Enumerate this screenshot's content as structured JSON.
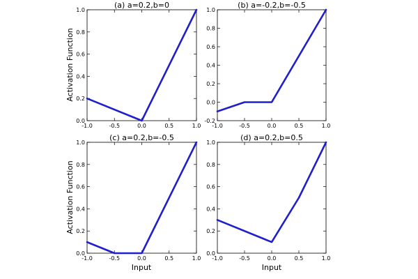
{
  "figure": {
    "ylabel": "Activation Function",
    "xlabel": "Input"
  },
  "chart_data": [
    {
      "type": "line",
      "title": "(a) a=0.2,b=0",
      "xlim": [
        -1.0,
        1.0
      ],
      "ylim": [
        0.0,
        1.0
      ],
      "xticks": [
        "-1.0",
        "-0.5",
        "0.0",
        "0.5",
        "1.0"
      ],
      "yticks": [
        "0.0",
        "0.2",
        "0.4",
        "0.6",
        "0.8",
        "1.0"
      ],
      "series": [
        {
          "color": "#1f1fcc",
          "x": [
            -1.0,
            -0.02,
            0.0,
            1.0
          ],
          "y": [
            0.2,
            0.004,
            0.0,
            1.0
          ]
        }
      ]
    },
    {
      "type": "line",
      "title": "(b) a=-0.2,b=-0.5",
      "xlim": [
        -1.0,
        1.0
      ],
      "ylim": [
        -0.2,
        1.0
      ],
      "xticks": [
        "-1.0",
        "-0.5",
        "0.0",
        "0.5",
        "1.0"
      ],
      "yticks": [
        "-0.2",
        "0.0",
        "0.2",
        "0.4",
        "0.6",
        "0.8",
        "1.0"
      ],
      "series": [
        {
          "color": "#1f1fcc",
          "x": [
            -1.0,
            -0.5,
            0.0,
            1.0
          ],
          "y": [
            -0.1,
            0.0,
            0.0,
            1.0
          ]
        }
      ]
    },
    {
      "type": "line",
      "title": "(c) a=0.2,b=-0.5",
      "xlim": [
        -1.0,
        1.0
      ],
      "ylim": [
        0.0,
        1.0
      ],
      "xticks": [
        "-1.0",
        "-0.5",
        "0.0",
        "0.5",
        "1.0"
      ],
      "yticks": [
        "0.0",
        "0.2",
        "0.4",
        "0.6",
        "0.8",
        "1.0"
      ],
      "series": [
        {
          "color": "#1f1fcc",
          "x": [
            -1.0,
            -0.5,
            0.0,
            1.0
          ],
          "y": [
            0.1,
            0.0,
            0.0,
            1.0
          ]
        }
      ]
    },
    {
      "type": "line",
      "title": "(d) a=0.2,b=0.5",
      "xlim": [
        -1.0,
        1.0
      ],
      "ylim": [
        0.0,
        1.0
      ],
      "xticks": [
        "-1.0",
        "-0.5",
        "0.0",
        "0.5",
        "1.0"
      ],
      "yticks": [
        "0.0",
        "0.2",
        "0.4",
        "0.6",
        "0.8",
        "1.0"
      ],
      "series": [
        {
          "color": "#1f1fcc",
          "x": [
            -1.0,
            0.0,
            0.5,
            1.0
          ],
          "y": [
            0.3,
            0.1,
            0.5,
            1.0
          ]
        }
      ]
    }
  ]
}
